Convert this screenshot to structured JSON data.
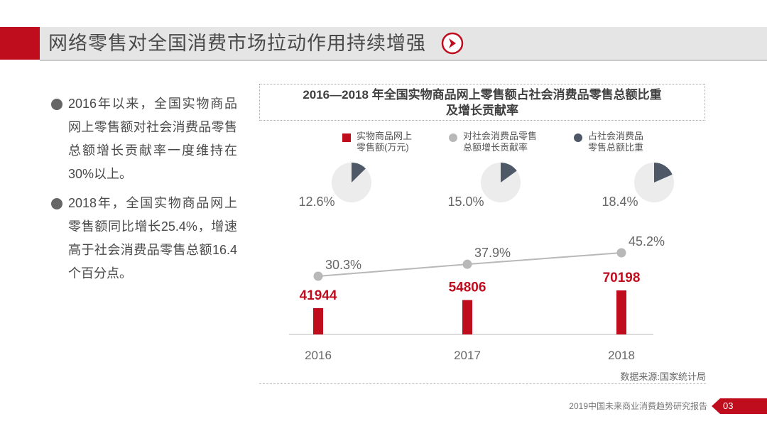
{
  "header": {
    "title": "网络零售对全国消费市场拉动作用持续增强",
    "accent_color": "#c00d1e",
    "icon": "circle-chevron-right-icon"
  },
  "bullets": [
    {
      "text": "2016年以来，全国实物商品网上零售额对社会消费品零售总额增长贡献率一度维持在30%以上。"
    },
    {
      "text": "2018年，全国实物商品网上零售额同比增长25.4%，增速高于社会消费品零售总额16.4个百分点。"
    }
  ],
  "chart_data": {
    "type": "bar",
    "title_line1": "2016—2018 年全国实物商品网上零售额占社会消费品零售总额比重",
    "title_line2": "及增长贡献率",
    "categories": [
      "2016",
      "2017",
      "2018"
    ],
    "series": [
      {
        "name": "实物商品网上零售额(万元)",
        "name_line1": "实物商品网上",
        "name_line2": "零售额(万元)",
        "type": "bar",
        "color": "#c00d1e",
        "values": [
          41944,
          54806,
          70198
        ],
        "labels": [
          "41944",
          "54806",
          "70198"
        ]
      },
      {
        "name": "对社会消费品零售总额增长贡献率",
        "name_line1": "对社会消费品零售",
        "name_line2": "总额增长贡献率",
        "type": "line",
        "color": "#b8b8b8",
        "values": [
          30.3,
          37.9,
          45.2
        ],
        "labels": [
          "30.3%",
          "37.9%",
          "45.2%"
        ]
      },
      {
        "name": "占社会消费品零售总额比重",
        "name_line1": "占社会消费品",
        "name_line2": "零售总额比重",
        "type": "pie",
        "color": "#4e5866",
        "base_color": "#ececec",
        "values": [
          12.6,
          15.0,
          18.4
        ],
        "labels": [
          "12.6%",
          "15.0%",
          "18.4%"
        ]
      }
    ],
    "grid": false,
    "legend_position": "top"
  },
  "source": "数据来源:国家统计局",
  "footer": {
    "report_name": "2019中国未来商业消费趋势研究报告",
    "page_number": "03"
  }
}
